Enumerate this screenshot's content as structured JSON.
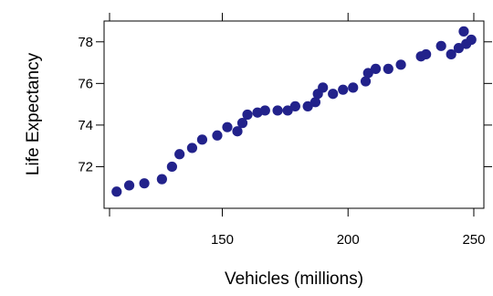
{
  "chart_data": {
    "type": "scatter",
    "xlabel": "Vehicles (millions)",
    "ylabel": "Life Expectancy",
    "xlim": [
      103,
      254
    ],
    "ylim": [
      70.0,
      79.0
    ],
    "x_ticks": [
      150,
      200,
      250
    ],
    "y_ticks": [
      72,
      74,
      76,
      78
    ],
    "grid": false,
    "marker_color": "#22228B",
    "points": [
      {
        "x": 108,
        "y": 70.8
      },
      {
        "x": 113,
        "y": 71.1
      },
      {
        "x": 119,
        "y": 71.2
      },
      {
        "x": 126,
        "y": 71.4
      },
      {
        "x": 130,
        "y": 72.0
      },
      {
        "x": 133,
        "y": 72.6
      },
      {
        "x": 138,
        "y": 72.9
      },
      {
        "x": 142,
        "y": 73.3
      },
      {
        "x": 148,
        "y": 73.5
      },
      {
        "x": 152,
        "y": 73.9
      },
      {
        "x": 156,
        "y": 73.7
      },
      {
        "x": 158,
        "y": 74.1
      },
      {
        "x": 160,
        "y": 74.5
      },
      {
        "x": 164,
        "y": 74.6
      },
      {
        "x": 167,
        "y": 74.7
      },
      {
        "x": 172,
        "y": 74.7
      },
      {
        "x": 176,
        "y": 74.7
      },
      {
        "x": 179,
        "y": 74.9
      },
      {
        "x": 184,
        "y": 74.9
      },
      {
        "x": 187,
        "y": 75.1
      },
      {
        "x": 188,
        "y": 75.5
      },
      {
        "x": 190,
        "y": 75.8
      },
      {
        "x": 194,
        "y": 75.5
      },
      {
        "x": 198,
        "y": 75.7
      },
      {
        "x": 202,
        "y": 75.8
      },
      {
        "x": 207,
        "y": 76.1
      },
      {
        "x": 208,
        "y": 76.5
      },
      {
        "x": 211,
        "y": 76.7
      },
      {
        "x": 216,
        "y": 76.7
      },
      {
        "x": 221,
        "y": 76.9
      },
      {
        "x": 229,
        "y": 77.3
      },
      {
        "x": 231,
        "y": 77.4
      },
      {
        "x": 237,
        "y": 77.8
      },
      {
        "x": 241,
        "y": 77.4
      },
      {
        "x": 244,
        "y": 77.7
      },
      {
        "x": 246,
        "y": 78.5
      },
      {
        "x": 247,
        "y": 77.9
      },
      {
        "x": 249,
        "y": 78.1
      }
    ]
  }
}
